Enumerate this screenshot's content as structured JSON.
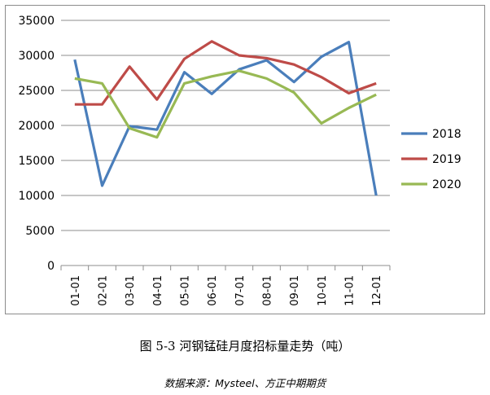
{
  "chart_data": {
    "type": "line",
    "categories": [
      "01-01",
      "02-01",
      "03-01",
      "04-01",
      "05-01",
      "06-01",
      "07-01",
      "08-01",
      "09-01",
      "10-01",
      "11-01",
      "12-01"
    ],
    "series": [
      {
        "name": "2018",
        "color": "#4a7ebb",
        "values": [
          29400,
          11400,
          19900,
          19400,
          27600,
          24500,
          28000,
          29300,
          26200,
          29800,
          31900,
          10000
        ]
      },
      {
        "name": "2019",
        "color": "#be4b48",
        "values": [
          23000,
          23000,
          28400,
          23700,
          29500,
          32000,
          30000,
          29600,
          28700,
          26900,
          24600,
          26000
        ]
      },
      {
        "name": "2020",
        "color": "#98b954",
        "values": [
          26700,
          26000,
          19600,
          18300,
          26000,
          27000,
          27800,
          26700,
          24700,
          20300,
          22500,
          24400
        ]
      }
    ],
    "ylim": [
      0,
      35000
    ],
    "yticks": [
      "0",
      "5000",
      "10000",
      "15000",
      "20000",
      "25000",
      "30000",
      "35000"
    ],
    "grid": true,
    "legend_position": "right"
  },
  "caption": "图 5-3 河钢锰硅月度招标量走势（吨）",
  "source": "数据来源：Mysteel、方正中期期货"
}
